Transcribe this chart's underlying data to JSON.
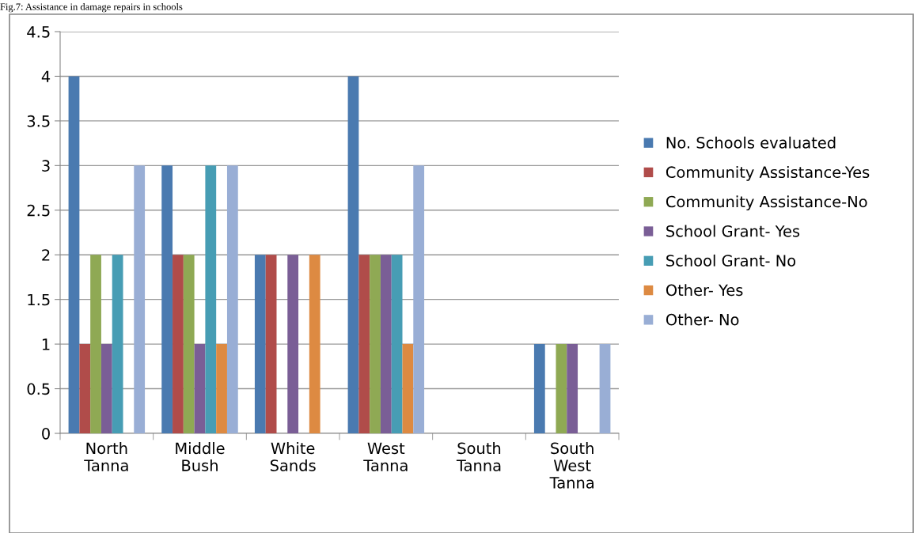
{
  "chart_data": {
    "type": "bar",
    "title": "Fig.7: Assistance in damage repairs in schools",
    "categories": [
      "North\nTanna",
      "Middle\nBush",
      "White\nSands",
      "West\nTanna",
      "South\nTanna",
      "South\nWest\nTanna"
    ],
    "series": [
      {
        "name": "No. Schools evaluated",
        "color": "#4a7ab0",
        "values": [
          4,
          3,
          2,
          4,
          0,
          1
        ]
      },
      {
        "name": "Community Assistance-Yes",
        "color": "#b04c4a",
        "values": [
          1,
          2,
          2,
          2,
          0,
          0
        ]
      },
      {
        "name": "Community Assistance-No",
        "color": "#8fa954",
        "values": [
          2,
          2,
          0,
          2,
          0,
          1
        ]
      },
      {
        "name": "School Grant- Yes",
        "color": "#7a5e96",
        "values": [
          1,
          1,
          2,
          2,
          0,
          1
        ]
      },
      {
        "name": "School Grant- No",
        "color": "#479db4",
        "values": [
          2,
          3,
          0,
          2,
          0,
          0
        ]
      },
      {
        "name": "Other- Yes",
        "color": "#dd8a42",
        "values": [
          0,
          1,
          2,
          1,
          0,
          0
        ]
      },
      {
        "name": "Other- No",
        "color": "#99aed5",
        "values": [
          3,
          3,
          0,
          3,
          0,
          1
        ]
      }
    ],
    "ylim": [
      0,
      4.5
    ],
    "yticks": [
      0,
      0.5,
      1,
      1.5,
      2,
      2.5,
      3,
      3.5,
      4,
      4.5
    ],
    "grid": "y",
    "legend": "right"
  }
}
